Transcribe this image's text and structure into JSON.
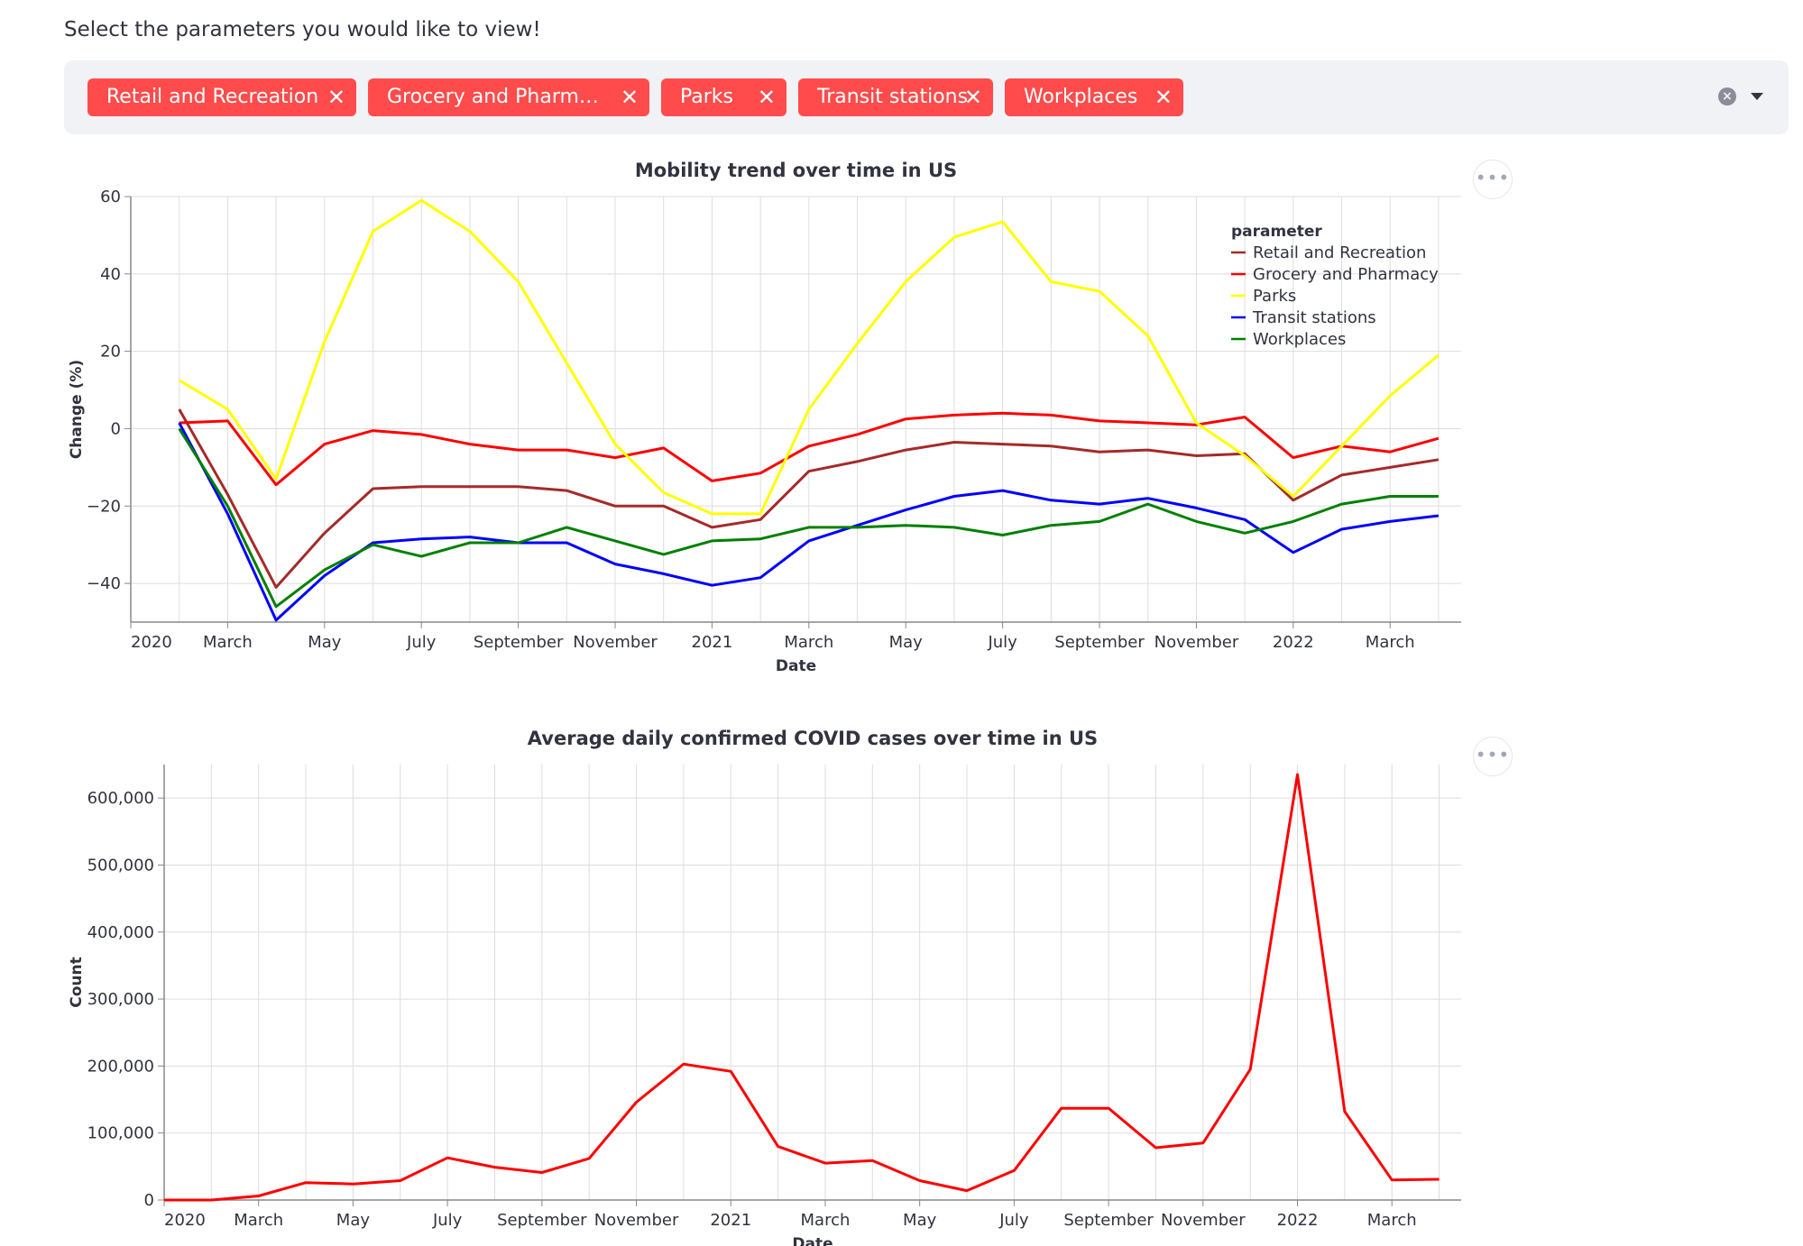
{
  "prompt": "Select the parameters you would like to view!",
  "multiselect": {
    "chips": [
      {
        "label": "Retail and Recreation",
        "left": 26,
        "width": 298
      },
      {
        "label": "Grocery and Pharm…",
        "left": 337,
        "width": 312
      },
      {
        "label": "Parks",
        "left": 662,
        "width": 139
      },
      {
        "label": "Transit stations",
        "left": 814,
        "width": 216
      },
      {
        "label": "Workplaces",
        "left": 1043,
        "width": 198
      }
    ],
    "remove_glyph": "✕",
    "clear_glyph": "×"
  },
  "menu_glyph": "•••",
  "chart_data": [
    {
      "type": "line",
      "title": "Mobility trend over time in US",
      "xlabel": "Date",
      "ylabel": "Change (%)",
      "ylim": [
        -50,
        60
      ],
      "yticks": [
        -40,
        -20,
        0,
        20,
        40,
        60
      ],
      "xlim": [
        "2020-01",
        "2022-04-15"
      ],
      "xticks": [
        {
          "label": "2020",
          "date": "2020-01"
        },
        {
          "label": "March",
          "date": "2020-03"
        },
        {
          "label": "May",
          "date": "2020-05"
        },
        {
          "label": "July",
          "date": "2020-07"
        },
        {
          "label": "September",
          "date": "2020-09"
        },
        {
          "label": "November",
          "date": "2020-11"
        },
        {
          "label": "2021",
          "date": "2021-01"
        },
        {
          "label": "March",
          "date": "2021-03"
        },
        {
          "label": "May",
          "date": "2021-05"
        },
        {
          "label": "July",
          "date": "2021-07"
        },
        {
          "label": "September",
          "date": "2021-09"
        },
        {
          "label": "November",
          "date": "2021-11"
        },
        {
          "label": "2022",
          "date": "2022-01"
        },
        {
          "label": "March",
          "date": "2022-03"
        }
      ],
      "grid": true,
      "legend": {
        "title": "parameter",
        "placement": "top-right"
      },
      "x": [
        "2020-02",
        "2020-03",
        "2020-04",
        "2020-05",
        "2020-06",
        "2020-07",
        "2020-08",
        "2020-09",
        "2020-10",
        "2020-11",
        "2020-12",
        "2021-01",
        "2021-02",
        "2021-03",
        "2021-04",
        "2021-05",
        "2021-06",
        "2021-07",
        "2021-08",
        "2021-09",
        "2021-10",
        "2021-11",
        "2021-12",
        "2022-01",
        "2022-02",
        "2022-03",
        "2022-04"
      ],
      "series": [
        {
          "name": "Retail and Recreation",
          "color": "#a52a2a",
          "values": [
            5,
            -17,
            -41,
            -27,
            -15.5,
            -15,
            -15,
            -15,
            -16,
            -20,
            -20,
            -25.5,
            -23.5,
            -11,
            -8.5,
            -5.5,
            -3.5,
            -4,
            -4.5,
            -6,
            -5.5,
            -7,
            -6.5,
            -18.5,
            -12,
            -10,
            -8
          ]
        },
        {
          "name": "Grocery and Pharmacy",
          "color": "#ff0000",
          "values": [
            1.5,
            2,
            -14.5,
            -4,
            -0.5,
            -1.5,
            -4,
            -5.5,
            -5.5,
            -7.5,
            -5,
            -13.5,
            -11.5,
            -4.5,
            -1.5,
            2.5,
            3.5,
            4,
            3.5,
            2,
            1.5,
            1,
            3,
            -7.5,
            -4.5,
            -6,
            -2.5
          ]
        },
        {
          "name": "Parks",
          "color": "#ffff00",
          "values": [
            12.5,
            5,
            -13,
            22.5,
            51,
            59,
            51,
            38,
            17,
            -4,
            -16.5,
            -22,
            -22,
            5,
            22,
            38,
            49.5,
            53.5,
            38,
            35.5,
            24,
            1.5,
            -7,
            -17.5,
            -4.5,
            8.5,
            19
          ]
        },
        {
          "name": "Transit stations",
          "color": "#0000ff",
          "values": [
            1.5,
            -22,
            -49.5,
            -38,
            -29.5,
            -28.5,
            -28,
            -29.5,
            -29.5,
            -35,
            -37.5,
            -40.5,
            -38.5,
            -29,
            -25,
            -21,
            -17.5,
            -16,
            -18.5,
            -19.5,
            -18,
            -20.5,
            -23.5,
            -32,
            -26,
            -24,
            -22.5
          ]
        },
        {
          "name": "Workplaces",
          "color": "#008000",
          "values": [
            0,
            -20,
            -46,
            -36.5,
            -30,
            -33,
            -29.5,
            -29.5,
            -25.5,
            -29,
            -32.5,
            -29,
            -28.5,
            -25.5,
            -25.5,
            -25,
            -25.5,
            -27.5,
            -25,
            -24,
            -19.5,
            -24,
            -27,
            -24,
            -19.5,
            -17.5,
            -17.5
          ]
        }
      ]
    },
    {
      "type": "line",
      "title": "Average daily confirmed COVID cases over time in US",
      "xlabel": "Date",
      "ylabel": "Count",
      "ylim": [
        0,
        650000
      ],
      "yticks": [
        0,
        100000,
        200000,
        300000,
        400000,
        500000,
        600000
      ],
      "ytick_labels": [
        "0",
        "100,000",
        "200,000",
        "300,000",
        "400,000",
        "500,000",
        "600,000"
      ],
      "xlim": [
        "2020-01",
        "2022-04-15"
      ],
      "xticks": [
        {
          "label": "2020",
          "date": "2020-01"
        },
        {
          "label": "March",
          "date": "2020-03"
        },
        {
          "label": "May",
          "date": "2020-05"
        },
        {
          "label": "July",
          "date": "2020-07"
        },
        {
          "label": "September",
          "date": "2020-09"
        },
        {
          "label": "November",
          "date": "2020-11"
        },
        {
          "label": "2021",
          "date": "2021-01"
        },
        {
          "label": "March",
          "date": "2021-03"
        },
        {
          "label": "May",
          "date": "2021-05"
        },
        {
          "label": "July",
          "date": "2021-07"
        },
        {
          "label": "September",
          "date": "2021-09"
        },
        {
          "label": "November",
          "date": "2021-11"
        },
        {
          "label": "2022",
          "date": "2022-01"
        },
        {
          "label": "March",
          "date": "2022-03"
        }
      ],
      "grid": true,
      "x": [
        "2020-01",
        "2020-02",
        "2020-03",
        "2020-04",
        "2020-05",
        "2020-06",
        "2020-07",
        "2020-08",
        "2020-09",
        "2020-10",
        "2020-11",
        "2020-12",
        "2021-01",
        "2021-02",
        "2021-03",
        "2021-04",
        "2021-05",
        "2021-06",
        "2021-07",
        "2021-08",
        "2021-09",
        "2021-10",
        "2021-11",
        "2021-12",
        "2022-01",
        "2022-02",
        "2022-03",
        "2022-04"
      ],
      "series": [
        {
          "color": "#ff0000",
          "values": [
            0,
            0,
            6000,
            26000,
            24000,
            29000,
            63000,
            49000,
            41000,
            62000,
            146000,
            203000,
            192000,
            80000,
            55000,
            59000,
            29000,
            14000,
            44000,
            137000,
            137000,
            78000,
            85000,
            195000,
            635000,
            132000,
            30000,
            31000
          ]
        }
      ]
    }
  ]
}
